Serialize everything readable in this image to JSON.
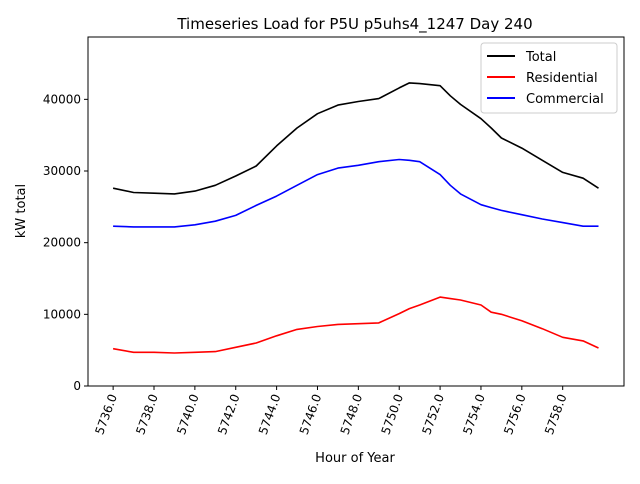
{
  "chart_data": {
    "type": "line",
    "title": "Timeseries Load for P5U p5uhs4_1247  Day 240",
    "xlabel": "Hour of Year",
    "ylabel": "kW total",
    "xlim": [
      5734.77,
      5761.0
    ],
    "ylim": [
      0,
      48700
    ],
    "grid": false,
    "legend_position": "top-right",
    "x_ticks": [
      5736,
      5738,
      5740,
      5742,
      5744,
      5746,
      5748,
      5750,
      5752,
      5754,
      5756,
      5758
    ],
    "x_tick_labels": [
      "5736.0",
      "5738.0",
      "5740.0",
      "5742.0",
      "5744.0",
      "5746.0",
      "5748.0",
      "5750.0",
      "5752.0",
      "5754.0",
      "5756.0",
      "5758.0"
    ],
    "y_ticks": [
      0,
      10000,
      20000,
      30000,
      40000
    ],
    "y_tick_labels": [
      "0",
      "10000",
      "20000",
      "30000",
      "40000"
    ],
    "x": [
      5736,
      5737,
      5738,
      5739,
      5740,
      5741,
      5742,
      5743,
      5744,
      5745,
      5746,
      5747,
      5748,
      5749,
      5750,
      5750.5,
      5751,
      5752,
      5752.5,
      5753,
      5754,
      5754.5,
      5755,
      5756,
      5757,
      5758,
      5759,
      5759.75
    ],
    "series": [
      {
        "name": "Total",
        "color": "#000000",
        "values": [
          27600,
          27000,
          26900,
          26800,
          27200,
          28000,
          29300,
          30700,
          33500,
          36000,
          38000,
          39200,
          39700,
          40100,
          41600,
          42300,
          42200,
          41900,
          40500,
          39300,
          37300,
          36000,
          34600,
          33200,
          31500,
          29800,
          29000,
          27600
        ]
      },
      {
        "name": "Residential",
        "color": "#ff0000",
        "values": [
          5200,
          4700,
          4700,
          4600,
          4700,
          4800,
          5400,
          6000,
          7000,
          7900,
          8300,
          8600,
          8700,
          8800,
          10100,
          10800,
          11300,
          12400,
          12200,
          12000,
          11300,
          10300,
          10000,
          9100,
          8000,
          6800,
          6300,
          5300
        ]
      },
      {
        "name": "Commercial",
        "color": "#0000ff",
        "values": [
          22300,
          22200,
          22200,
          22200,
          22500,
          23000,
          23800,
          25200,
          26500,
          28000,
          29500,
          30400,
          30800,
          31300,
          31600,
          31500,
          31300,
          29500,
          28000,
          26800,
          25300,
          24900,
          24500,
          23900,
          23300,
          22800,
          22300,
          22300
        ]
      }
    ]
  }
}
